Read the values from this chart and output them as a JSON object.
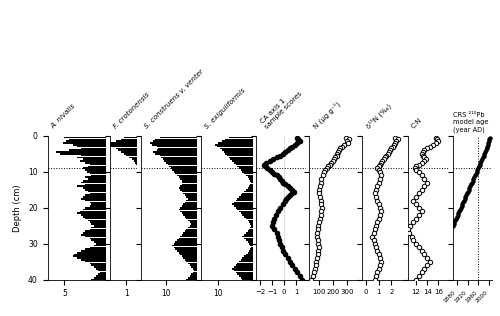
{
  "depth_diatom": [
    0.5,
    1.0,
    1.5,
    2.0,
    2.5,
    3.0,
    3.5,
    4.0,
    4.5,
    5.0,
    5.5,
    6.0,
    6.5,
    7.0,
    7.5,
    8.0,
    8.5,
    9.0,
    9.5,
    10.0,
    10.5,
    11.0,
    11.5,
    12.0,
    12.5,
    13.0,
    13.5,
    14.0,
    14.5,
    15.0,
    15.5,
    16.0,
    16.5,
    17.0,
    17.5,
    18.0,
    18.5,
    19.0,
    19.5,
    20.0,
    20.5,
    21.0,
    21.5,
    22.0,
    22.5,
    23.0,
    23.5,
    24.0,
    24.5,
    25.0,
    25.5,
    26.0,
    26.5,
    27.0,
    27.5,
    28.0,
    28.5,
    29.0,
    29.5,
    30.0,
    30.5,
    31.0,
    31.5,
    32.0,
    32.5,
    33.0,
    33.5,
    34.0,
    34.5,
    35.0,
    35.5,
    36.0,
    36.5,
    37.0,
    37.5,
    38.0,
    38.5,
    39.0,
    39.5,
    40.0
  ],
  "A_nivalis": [
    5.0,
    4.5,
    4.8,
    5.2,
    4.0,
    3.5,
    3.0,
    4.5,
    6.0,
    5.5,
    3.0,
    3.5,
    2.8,
    3.2,
    2.5,
    2.0,
    2.2,
    2.8,
    2.5,
    2.3,
    2.0,
    1.8,
    2.5,
    2.2,
    2.8,
    3.0,
    2.5,
    3.5,
    2.8,
    2.5,
    2.2,
    2.0,
    2.5,
    2.8,
    3.0,
    2.5,
    2.0,
    1.8,
    2.0,
    2.5,
    2.8,
    3.2,
    3.5,
    3.0,
    2.8,
    2.5,
    2.2,
    2.0,
    1.8,
    1.5,
    1.8,
    2.0,
    2.5,
    2.8,
    3.0,
    2.5,
    2.0,
    1.8,
    1.5,
    1.2,
    1.5,
    2.0,
    2.5,
    3.0,
    3.5,
    3.8,
    4.0,
    3.5,
    3.0,
    2.5,
    2.0,
    1.8,
    1.5,
    1.3,
    1.0,
    0.8,
    1.0,
    1.2,
    1.5,
    1.8
  ],
  "F_crotonensis": [
    1.2,
    1.5,
    2.0,
    2.5,
    2.8,
    2.5,
    2.0,
    1.8,
    1.5,
    1.2,
    1.0,
    0.8,
    0.5,
    0.3,
    0.2,
    0.1,
    0.05,
    0.0,
    0.0,
    0.0,
    0.0,
    0.0,
    0.0,
    0.0,
    0.0,
    0.0,
    0.0,
    0.0,
    0.0,
    0.0,
    0.0,
    0.0,
    0.0,
    0.0,
    0.0,
    0.0,
    0.0,
    0.0,
    0.0,
    0.0,
    0.0,
    0.0,
    0.0,
    0.0,
    0.0,
    0.0,
    0.0,
    0.0,
    0.0,
    0.0,
    0.0,
    0.0,
    0.0,
    0.0,
    0.0,
    0.0,
    0.0,
    0.0,
    0.0,
    0.0,
    0.0,
    0.0,
    0.0,
    0.0,
    0.0,
    0.0,
    0.0,
    0.0,
    0.0,
    0.0,
    0.0,
    0.0,
    0.0,
    0.0,
    0.0,
    0.0,
    0.0,
    0.0,
    0.0,
    0.0
  ],
  "S_construens": [
    12.0,
    13.5,
    14.0,
    15.0,
    14.5,
    13.0,
    12.5,
    13.0,
    14.0,
    13.5,
    12.0,
    11.5,
    11.0,
    10.5,
    10.0,
    9.5,
    9.0,
    8.5,
    8.0,
    7.5,
    7.0,
    6.5,
    6.0,
    5.5,
    5.0,
    4.8,
    5.0,
    5.5,
    6.0,
    5.5,
    5.0,
    4.5,
    4.0,
    3.5,
    3.0,
    3.5,
    4.0,
    4.5,
    5.0,
    5.5,
    6.0,
    5.5,
    5.0,
    4.5,
    4.0,
    3.5,
    3.0,
    2.5,
    2.0,
    2.5,
    3.0,
    3.5,
    4.0,
    4.5,
    5.0,
    5.5,
    6.0,
    6.5,
    7.0,
    7.5,
    8.0,
    7.5,
    7.0,
    6.5,
    6.0,
    5.5,
    5.0,
    4.5,
    4.0,
    3.5,
    3.0,
    2.5,
    2.0,
    1.5,
    1.0,
    1.5,
    2.0,
    2.5,
    3.0,
    3.5
  ],
  "S_exiguliformis": [
    7.0,
    8.0,
    9.0,
    10.0,
    11.0,
    10.5,
    9.5,
    9.0,
    8.5,
    8.0,
    7.5,
    7.0,
    6.5,
    6.0,
    5.5,
    5.0,
    4.5,
    4.0,
    3.5,
    3.0,
    2.5,
    2.0,
    1.5,
    1.0,
    0.8,
    0.5,
    0.8,
    1.0,
    1.5,
    2.0,
    2.5,
    3.0,
    3.5,
    4.0,
    4.5,
    5.0,
    5.5,
    6.0,
    5.5,
    5.0,
    4.5,
    4.0,
    3.5,
    3.0,
    2.5,
    2.0,
    1.5,
    1.0,
    0.8,
    0.5,
    0.8,
    1.0,
    1.5,
    2.0,
    2.5,
    3.0,
    2.5,
    2.0,
    1.5,
    1.0,
    0.8,
    0.5,
    0.8,
    1.0,
    1.5,
    2.0,
    2.5,
    3.0,
    3.5,
    4.0,
    4.5,
    5.0,
    5.5,
    6.0,
    5.5,
    5.0,
    4.5,
    4.0,
    3.5,
    3.0
  ],
  "CA1_depth": [
    0.5,
    1.0,
    1.5,
    2.0,
    2.5,
    3.0,
    3.5,
    4.0,
    4.5,
    5.0,
    5.5,
    6.0,
    6.5,
    7.0,
    7.5,
    8.0,
    8.5,
    9.0,
    9.5,
    10.0,
    10.5,
    11.0,
    11.5,
    12.0,
    12.5,
    13.0,
    13.5,
    14.0,
    14.5,
    15.0,
    15.5,
    16.0,
    16.5,
    17.0,
    17.5,
    18.0,
    19.0,
    20.0,
    21.0,
    22.0,
    23.0,
    24.0,
    25.0,
    26.0,
    27.0,
    28.0,
    29.0,
    30.0,
    31.0,
    32.0,
    33.0,
    34.0,
    35.0,
    36.0,
    37.0,
    38.0,
    39.0,
    40.0
  ],
  "CA1": [
    1.1,
    1.2,
    1.3,
    1.1,
    0.9,
    0.7,
    0.5,
    0.3,
    0.1,
    -0.1,
    -0.3,
    -0.6,
    -0.9,
    -1.2,
    -1.5,
    -1.7,
    -1.6,
    -1.4,
    -1.2,
    -1.0,
    -0.8,
    -0.6,
    -0.4,
    -0.3,
    -0.2,
    -0.1,
    0.1,
    0.3,
    0.5,
    0.7,
    0.8,
    0.7,
    0.5,
    0.3,
    0.2,
    0.1,
    -0.1,
    -0.3,
    -0.5,
    -0.7,
    -0.8,
    -0.9,
    -1.0,
    -0.8,
    -0.6,
    -0.5,
    -0.4,
    -0.3,
    -0.2,
    -0.1,
    0.1,
    0.3,
    0.5,
    0.7,
    0.9,
    1.1,
    1.3,
    1.5
  ],
  "N_depth": [
    0.5,
    1.0,
    1.5,
    2.0,
    2.5,
    3.0,
    3.5,
    4.0,
    4.5,
    5.0,
    5.5,
    6.0,
    6.5,
    7.0,
    7.5,
    8.0,
    8.5,
    9.0,
    9.5,
    10.0,
    11.0,
    12.0,
    13.0,
    14.0,
    15.0,
    16.0,
    17.0,
    18.0,
    19.0,
    20.0,
    21.0,
    22.0,
    23.0,
    24.0,
    25.0,
    26.0,
    27.0,
    28.0,
    29.0,
    30.0,
    31.0,
    32.0,
    33.0,
    34.0,
    35.0,
    36.0,
    37.0,
    38.0,
    39.0,
    40.0
  ],
  "N": [
    290,
    310,
    295,
    305,
    280,
    265,
    250,
    240,
    235,
    230,
    225,
    215,
    205,
    195,
    185,
    175,
    165,
    155,
    145,
    135,
    125,
    115,
    110,
    105,
    100,
    100,
    105,
    110,
    115,
    120,
    115,
    110,
    105,
    100,
    95,
    90,
    85,
    85,
    90,
    95,
    100,
    95,
    90,
    85,
    80,
    75,
    70,
    65,
    55,
    45
  ],
  "d15N_depth": [
    0.5,
    1.0,
    1.5,
    2.0,
    2.5,
    3.0,
    3.5,
    4.0,
    4.5,
    5.0,
    5.5,
    6.0,
    6.5,
    7.0,
    7.5,
    8.0,
    8.5,
    9.0,
    9.5,
    10.0,
    11.0,
    12.0,
    13.0,
    14.0,
    15.0,
    16.0,
    17.0,
    18.0,
    19.0,
    20.0,
    21.0,
    22.0,
    23.0,
    24.0,
    25.0,
    26.0,
    27.0,
    28.0,
    29.0,
    30.0,
    31.0,
    32.0,
    33.0,
    34.0,
    35.0,
    36.0,
    37.0,
    38.0,
    39.0,
    40.0
  ],
  "d15N": [
    2.3,
    2.5,
    2.4,
    2.3,
    2.2,
    2.1,
    2.0,
    1.9,
    1.8,
    1.7,
    1.6,
    1.5,
    1.4,
    1.3,
    1.2,
    1.1,
    1.0,
    0.9,
    1.0,
    1.1,
    1.2,
    1.1,
    1.0,
    0.9,
    0.8,
    0.7,
    0.8,
    0.9,
    1.0,
    1.1,
    1.2,
    1.1,
    1.0,
    0.9,
    0.8,
    0.7,
    0.6,
    0.5,
    0.6,
    0.7,
    0.8,
    0.9,
    1.0,
    1.1,
    1.2,
    1.1,
    1.0,
    0.9,
    0.8,
    0.7
  ],
  "CN_depth": [
    0.5,
    1.0,
    1.5,
    2.0,
    2.5,
    3.0,
    3.5,
    4.0,
    4.5,
    5.0,
    5.5,
    6.0,
    6.5,
    7.0,
    7.5,
    8.0,
    8.5,
    9.0,
    9.5,
    10.0,
    11.0,
    12.0,
    13.0,
    14.0,
    15.0,
    16.0,
    17.0,
    18.0,
    19.0,
    20.0,
    21.0,
    22.0,
    23.0,
    24.0,
    25.0,
    26.0,
    27.0,
    28.0,
    29.0,
    30.0,
    31.0,
    32.0,
    33.0,
    34.0,
    35.0,
    36.0,
    37.0,
    38.0,
    39.0,
    40.0
  ],
  "CN": [
    15.5,
    15.8,
    16.0,
    15.5,
    15.0,
    14.5,
    14.0,
    13.5,
    13.2,
    13.0,
    13.2,
    13.5,
    13.8,
    13.5,
    13.0,
    12.5,
    12.0,
    11.8,
    12.0,
    12.5,
    13.0,
    13.5,
    14.0,
    13.5,
    13.0,
    12.5,
    12.0,
    11.5,
    12.0,
    12.5,
    13.0,
    12.5,
    12.0,
    11.5,
    11.0,
    10.5,
    10.8,
    11.2,
    11.5,
    12.0,
    12.5,
    13.0,
    13.5,
    14.0,
    14.5,
    14.0,
    13.5,
    13.0,
    12.5,
    12.0
  ],
  "pb_depth": [
    0.5,
    1.0,
    1.5,
    2.0,
    2.5,
    3.0,
    3.5,
    4.0,
    4.5,
    5.0,
    5.5,
    6.0,
    6.5,
    7.0,
    7.5,
    8.0,
    8.5,
    9.0,
    9.5,
    10.0,
    10.5,
    11.0,
    11.5,
    12.0,
    12.5,
    13.0,
    13.5,
    14.0,
    14.5,
    15.0,
    15.5,
    16.0,
    16.5,
    17.0,
    17.5,
    18.0,
    18.5,
    19.0,
    19.5,
    20.0,
    20.5,
    21.0,
    21.5,
    22.0,
    22.5,
    23.0,
    23.5,
    24.0,
    24.5,
    25.0
  ],
  "pb_age": [
    2005,
    2003,
    2001,
    1999,
    1997,
    1995,
    1993,
    1990,
    1987,
    1984,
    1981,
    1978,
    1975,
    1972,
    1969,
    1966,
    1963,
    1960,
    1957,
    1954,
    1951,
    1948,
    1945,
    1942,
    1939,
    1936,
    1933,
    1930,
    1927,
    1924,
    1921,
    1918,
    1915,
    1912,
    1909,
    1906,
    1903,
    1900,
    1897,
    1894,
    1891,
    1888,
    1885,
    1882,
    1879,
    1876,
    1873,
    1870,
    1867,
    1864
  ],
  "depth_1960": 9.0,
  "bar_color": "#000000",
  "background": "#ffffff",
  "col_labels": [
    "A. nivalis",
    "F. crotonensis",
    "S. construens v. venter",
    "S. exiguliformis",
    "CA axis 1\nsample scores",
    "N (μg g⁻¹)",
    "δ¹⁵N (‰)",
    "C:N",
    "CRS ²¹⁰Pb\nmodel age\n(year AD)"
  ],
  "italic_cols": [
    true,
    true,
    true,
    true,
    false,
    false,
    false,
    false,
    false
  ],
  "xticks_0": [
    5
  ],
  "xticks_1": [
    1
  ],
  "xticks_2": [
    10
  ],
  "xticks_3": [
    10
  ],
  "xticks_4": [
    -2,
    -1,
    0,
    1
  ],
  "xticks_5": [
    100,
    200,
    300
  ],
  "xticks_6": [
    0,
    1,
    2
  ],
  "xticks_7": [
    12,
    14,
    16
  ],
  "xticks_8": [
    1880,
    1920,
    1960,
    2000
  ],
  "xlim_0": [
    7,
    0
  ],
  "xlim_1": [
    2.5,
    0
  ],
  "xlim_2": [
    18,
    0
  ],
  "xlim_3": [
    15,
    0
  ],
  "xlim_4": [
    -2.3,
    1.8
  ],
  "xlim_5": [
    30,
    380
  ],
  "xlim_6": [
    -0.3,
    3.0
  ],
  "xlim_7": [
    10.5,
    18.0
  ],
  "xlim_8": [
    1865,
    2015
  ],
  "depth_min": 0,
  "depth_max": 40,
  "yticks": [
    0,
    10,
    20,
    30,
    40
  ]
}
